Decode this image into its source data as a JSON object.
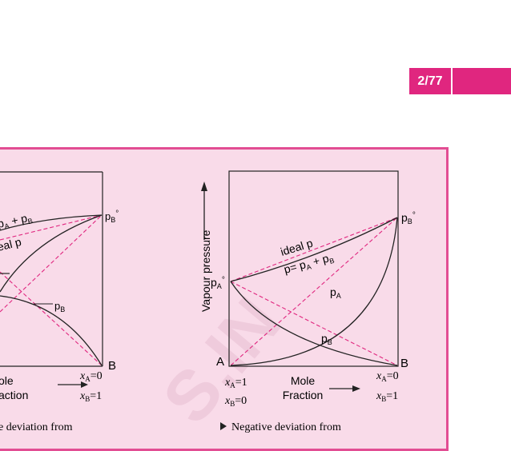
{
  "page_number": "2/77",
  "colors": {
    "accent": "#e0267f",
    "panel_bg": "#f9dbe9",
    "panel_border": "#e24d93",
    "dashed": "#e0267f"
  },
  "left_graph": {
    "labels": {
      "total": "p_A + p_B",
      "ideal": "ideal p",
      "pB": "p_B",
      "pB0": "p_B°",
      "B": "B"
    },
    "axis": {
      "mole": "Mole",
      "fraction": "Fraction",
      "xA0": "x_A=0",
      "xB1": "x_B=1"
    },
    "caption": "e deviation from"
  },
  "right_graph": {
    "ylabel": "Vapour pressure",
    "labels": {
      "ideal": "ideal p",
      "total": "p= p_A + p_B",
      "pA": "p_A",
      "pB": "p_B",
      "pA0": "p_A°",
      "pB0": "p_B°",
      "A": "A",
      "B": "B"
    },
    "axis": {
      "xA1": "x_A=1",
      "xB0": "x_B=0",
      "mole": "Mole",
      "fraction": "Fraction",
      "xA0": "x_A=0",
      "xB1": "x_B=1"
    },
    "caption": "Negative deviation from"
  },
  "watermark": "S.IN"
}
